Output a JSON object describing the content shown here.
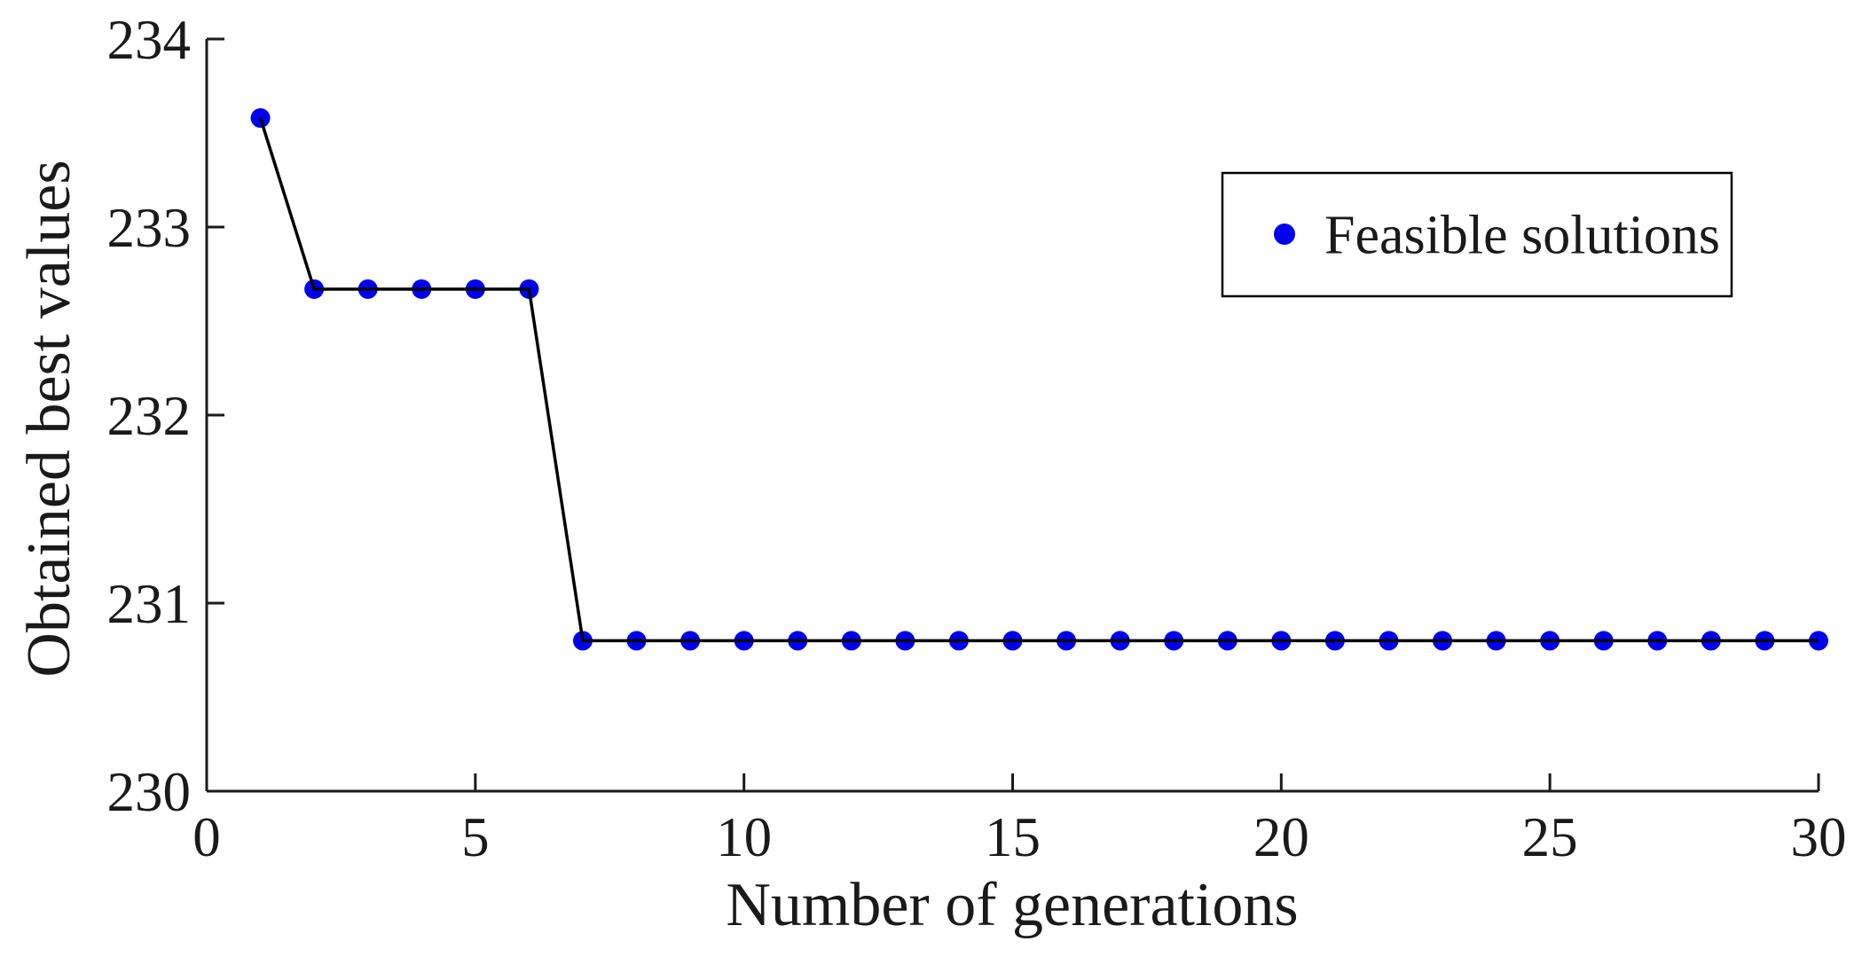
{
  "figure": {
    "background": "#ffffff"
  },
  "chart_data": {
    "type": "line",
    "title": "",
    "xlabel": "Number of generations",
    "ylabel": "Obtained best values",
    "xlim": [
      0,
      30
    ],
    "ylim": [
      230,
      234
    ],
    "xticks": [
      0,
      5,
      10,
      15,
      20,
      25,
      30
    ],
    "yticks": [
      230,
      231,
      232,
      233,
      234
    ],
    "grid": false,
    "legend": {
      "label": "Feasible solutions",
      "position": "northeast",
      "marker": "circle-icon"
    },
    "colors": {
      "marker": "#0000ee",
      "line": "#000000",
      "axis": "#1a1a1a",
      "text": "#1a1a1a",
      "legend_border": "#000000",
      "legend_fill": "#ffffff"
    },
    "series": [
      {
        "name": "Feasible solutions",
        "marker": "circle",
        "x": [
          1,
          2,
          3,
          4,
          5,
          6,
          7,
          8,
          9,
          10,
          11,
          12,
          13,
          14,
          15,
          16,
          17,
          18,
          19,
          20,
          21,
          22,
          23,
          24,
          25,
          26,
          27,
          28,
          29,
          30
        ],
        "y": [
          233.58,
          232.67,
          232.67,
          232.67,
          232.67,
          232.67,
          230.8,
          230.8,
          230.8,
          230.8,
          230.8,
          230.8,
          230.8,
          230.8,
          230.8,
          230.8,
          230.8,
          230.8,
          230.8,
          230.8,
          230.8,
          230.8,
          230.8,
          230.8,
          230.8,
          230.8,
          230.8,
          230.8,
          230.8,
          230.8
        ]
      }
    ]
  }
}
